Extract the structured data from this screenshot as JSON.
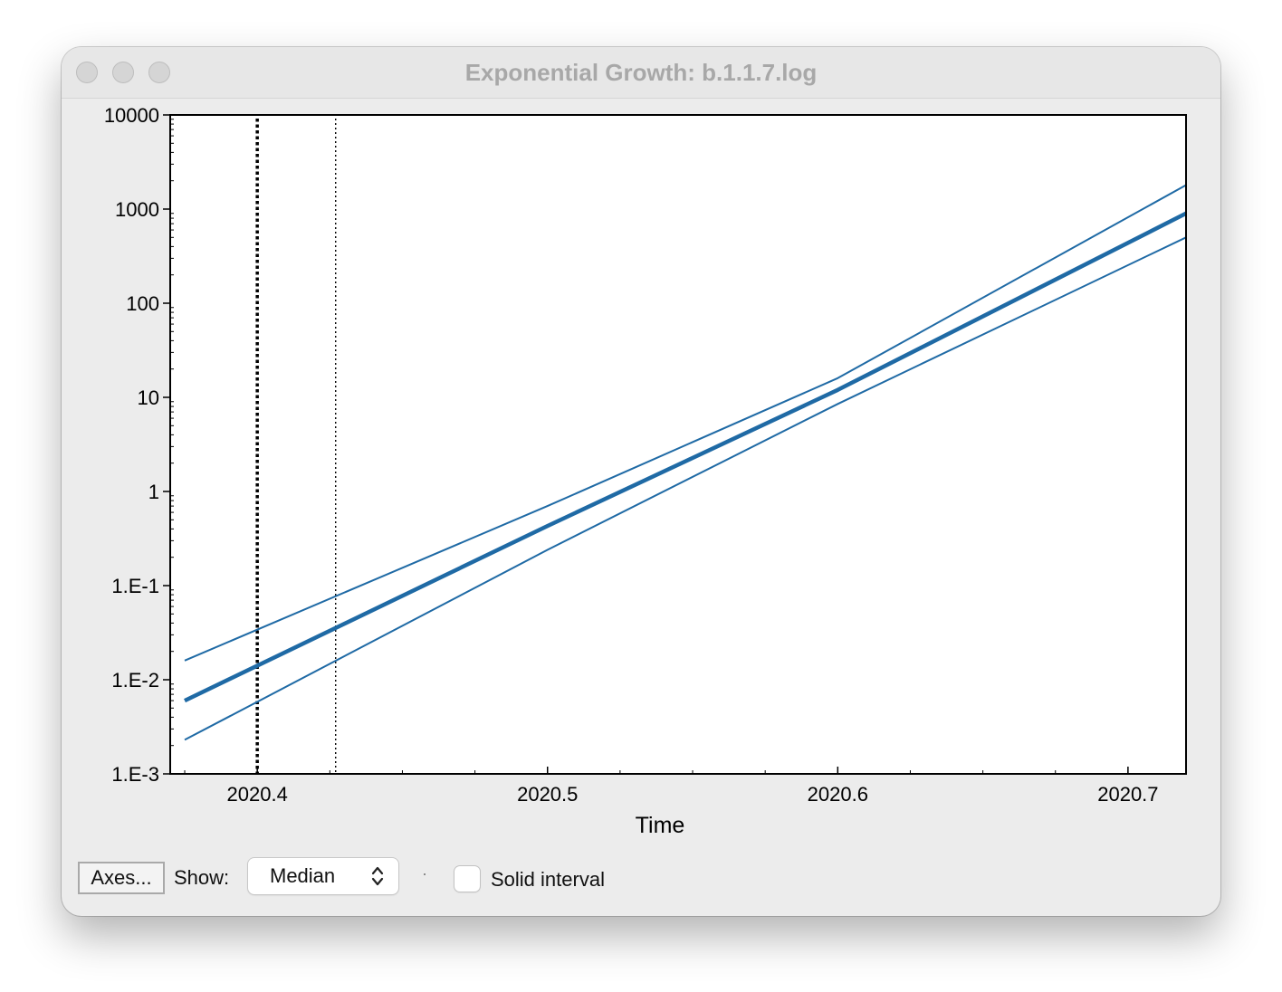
{
  "window": {
    "title": "Exponential Growth: b.1.1.7.log"
  },
  "controls": {
    "axes_button_label": "Axes...",
    "show_label": "Show:",
    "show_selected": "Median",
    "solid_interval_label": "Solid interval",
    "solid_interval_checked": false
  },
  "colors": {
    "series": "#1f6aa5",
    "marker_line": "#000000"
  },
  "chart_data": {
    "type": "line",
    "xlabel": "Time",
    "ylabel": "",
    "xlim": [
      2020.37,
      2020.72
    ],
    "ylim": [
      0.001,
      10000
    ],
    "yscale": "log",
    "x_ticks": [
      2020.4,
      2020.5,
      2020.6,
      2020.7
    ],
    "x_tick_labels": [
      "2020.4",
      "2020.5",
      "2020.6",
      "2020.7"
    ],
    "y_ticks": [
      10000,
      1000,
      100,
      10,
      1,
      0.1,
      0.01,
      0.001
    ],
    "y_tick_labels": [
      "10000",
      "1000",
      "100",
      "10",
      "1",
      "1.E-1",
      "1.E-2",
      "1.E-3"
    ],
    "grid": false,
    "series": [
      {
        "role": "upper",
        "x": [
          2020.375,
          2020.5,
          2020.6,
          2020.72
        ],
        "y": [
          0.016,
          0.7,
          16,
          1800
        ]
      },
      {
        "role": "median",
        "x": [
          2020.375,
          2020.5,
          2020.6,
          2020.72
        ],
        "y": [
          0.006,
          0.43,
          12,
          900
        ]
      },
      {
        "role": "lower",
        "x": [
          2020.375,
          2020.5,
          2020.6,
          2020.72
        ],
        "y": [
          0.0023,
          0.24,
          8.5,
          500
        ]
      }
    ],
    "vertical_markers": [
      {
        "x": 2020.4,
        "style": "thick-dotted"
      },
      {
        "x": 2020.427,
        "style": "thin-dotted"
      }
    ]
  }
}
